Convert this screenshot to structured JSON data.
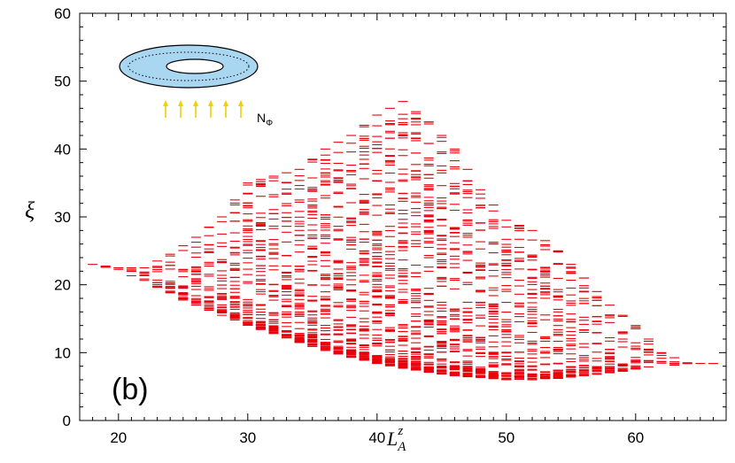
{
  "chart_data": {
    "type": "scatter",
    "marker": "short-horizontal-dash",
    "color": "#e8000b",
    "panel_label": "(b)",
    "xlabel": {
      "base": "L",
      "sub": "A",
      "sup": "z"
    },
    "ylabel": "ξ",
    "xlim": [
      17,
      67
    ],
    "ylim": [
      0,
      60
    ],
    "xticks": [
      20,
      30,
      40,
      50,
      60
    ],
    "yticks": [
      0,
      10,
      20,
      30,
      40,
      50,
      60
    ],
    "grid": false,
    "legend": "none",
    "annotation": {
      "flux_label": "N",
      "flux_sub": "Φ",
      "arrow_color": "#f0d000",
      "disk_color": "#a9d6f0"
    },
    "envelope": {
      "x": [
        18,
        20,
        22,
        24,
        26,
        28,
        30,
        32,
        34,
        36,
        38,
        40,
        42,
        44,
        46,
        48,
        50,
        52,
        54,
        56,
        58,
        60,
        62,
        64,
        66
      ],
      "lower": [
        23.0,
        22.0,
        20.5,
        18.5,
        17.0,
        15.5,
        14.0,
        12.8,
        11.5,
        10.3,
        9.3,
        8.4,
        7.7,
        7.1,
        6.6,
        6.3,
        6.0,
        6.0,
        6.2,
        6.6,
        7.0,
        7.5,
        8.0,
        8.3,
        8.4
      ],
      "upper": [
        23.0,
        22.5,
        22.5,
        24.5,
        27.0,
        30.0,
        35.0,
        36.0,
        37.0,
        40.0,
        42.0,
        45.0,
        47.0,
        44.0,
        40.0,
        34.0,
        29.5,
        28.0,
        25.0,
        21.0,
        17.0,
        14.0,
        10.0,
        8.5,
        8.4
      ]
    }
  }
}
